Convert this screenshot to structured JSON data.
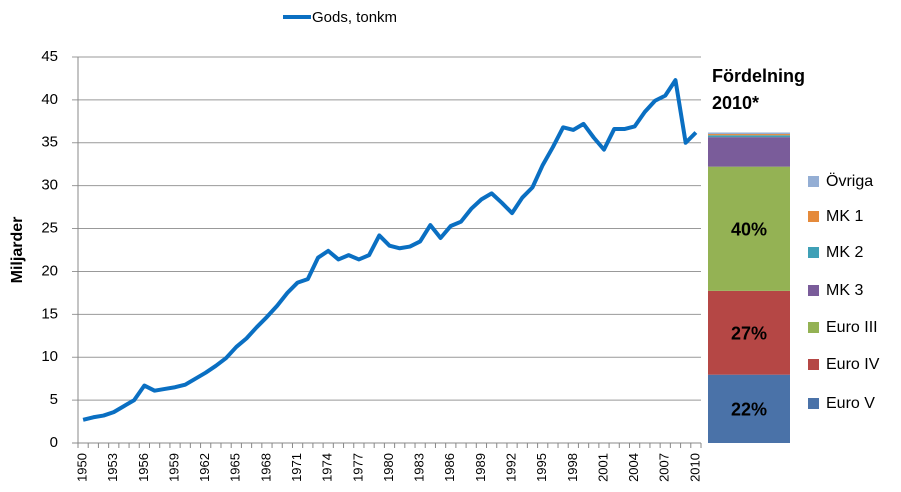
{
  "chart_data": [
    {
      "type": "line",
      "y_label": "Miljarder",
      "categories": [
        "1950",
        null,
        null,
        "1953",
        null,
        null,
        "1956",
        null,
        null,
        "1959",
        null,
        null,
        "1962",
        null,
        null,
        "1965",
        null,
        null,
        "1968",
        null,
        null,
        "1971",
        null,
        null,
        "1974",
        null,
        null,
        "1977",
        null,
        null,
        "1980",
        null,
        null,
        "1983",
        null,
        null,
        "1986",
        null,
        null,
        "1989",
        null,
        null,
        "1992",
        null,
        null,
        "1995",
        null,
        null,
        "1998",
        null,
        null,
        "2001",
        null,
        null,
        "2004",
        null,
        null,
        "2007",
        null,
        null,
        "2010"
      ],
      "series": [
        {
          "name": "Gods, tonkm",
          "color": "#0a6fc2",
          "values": [
            2.7,
            3.0,
            3.2,
            3.6,
            4.3,
            5.0,
            6.7,
            6.1,
            6.3,
            6.5,
            6.8,
            7.5,
            8.2,
            9.0,
            9.9,
            11.2,
            12.2,
            13.5,
            14.7,
            16.0,
            17.5,
            18.7,
            19.1,
            21.6,
            22.4,
            21.4,
            21.9,
            21.4,
            21.9,
            24.2,
            23.0,
            22.7,
            22.9,
            23.5,
            25.4,
            23.9,
            25.3,
            25.8,
            27.3,
            28.4,
            29.1,
            28.0,
            26.8,
            28.6,
            29.8,
            32.4,
            34.5,
            36.8,
            36.5,
            37.2,
            35.6,
            34.2,
            36.6,
            36.6,
            36.9,
            38.6,
            39.9,
            40.5,
            42.3,
            35.0,
            36.2
          ]
        }
      ],
      "ylim": [
        0,
        45
      ],
      "yticks": [
        0,
        5,
        10,
        15,
        20,
        25,
        30,
        35,
        40,
        45
      ],
      "grid": true,
      "legend": "top"
    },
    {
      "type": "stacked_bar",
      "title": [
        "Fördelning",
        "2010*"
      ],
      "ylim": [
        0,
        100
      ],
      "series": [
        {
          "name": "Euro V",
          "color": "#4a72a8",
          "values": [
            22
          ],
          "value_labels": [
            "22%"
          ]
        },
        {
          "name": "Euro IV",
          "color": "#b54745",
          "values": [
            27
          ],
          "value_labels": [
            "27%"
          ]
        },
        {
          "name": "Euro III",
          "color": "#94b254",
          "values": [
            40
          ],
          "value_labels": [
            "40%"
          ]
        },
        {
          "name": "MK 3",
          "color": "#7a5c9a",
          "values": [
            9.5
          ]
        },
        {
          "name": "MK 2",
          "color": "#3fa0b6",
          "values": [
            0.6
          ]
        },
        {
          "name": "MK 1",
          "color": "#e58a3b",
          "values": [
            0.4
          ]
        },
        {
          "name": "Övriga",
          "color": "#94aed4",
          "values": [
            0.5
          ]
        }
      ],
      "legend": "right"
    }
  ]
}
